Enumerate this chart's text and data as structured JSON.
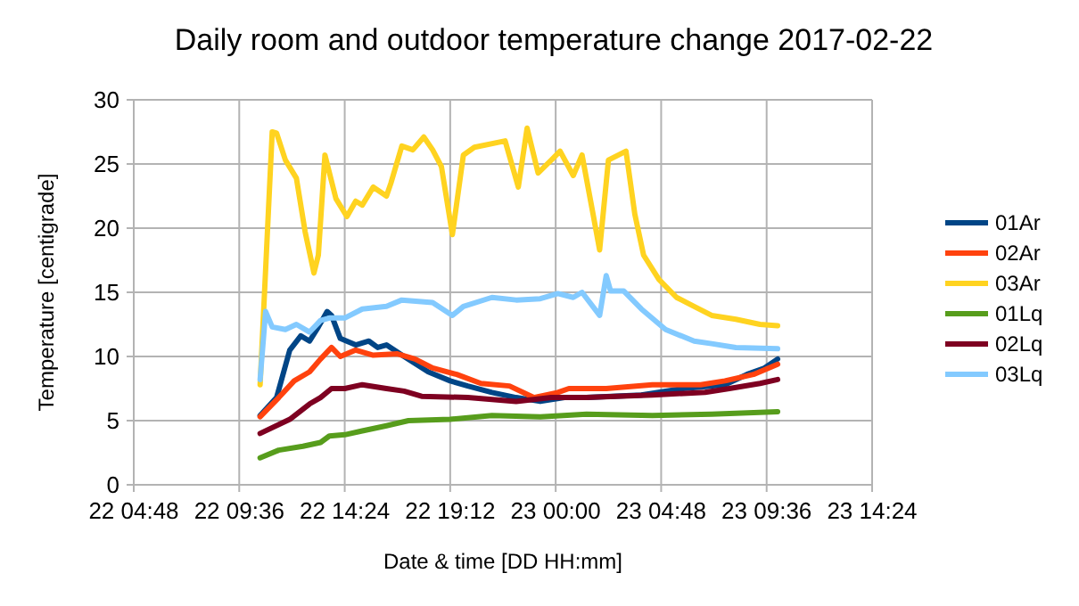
{
  "chart_data": {
    "type": "line",
    "title": "Daily room and outdoor temperature change 2017-02-22",
    "xlabel": "Date & time [DD HH:mm]",
    "ylabel": "Temperature [centigrade]",
    "xlim": [
      "2017-02-22T04:48",
      "2017-02-23T14:24"
    ],
    "xticks": [
      {
        "value": "2017-02-22T04:48",
        "label": "22 04:48"
      },
      {
        "value": "2017-02-22T09:36",
        "label": "22 09:36"
      },
      {
        "value": "2017-02-22T14:24",
        "label": "22 14:24"
      },
      {
        "value": "2017-02-22T19:12",
        "label": "22 19:12"
      },
      {
        "value": "2017-02-23T00:00",
        "label": "23 00:00"
      },
      {
        "value": "2017-02-23T04:48",
        "label": "23 04:48"
      },
      {
        "value": "2017-02-23T09:36",
        "label": "23 09:36"
      },
      {
        "value": "2017-02-23T14:24",
        "label": "23 14:24"
      }
    ],
    "ylim": [
      0,
      30
    ],
    "yticks": [
      0,
      5,
      10,
      15,
      20,
      25,
      30
    ],
    "grid": true,
    "legend": "right",
    "marker": "none",
    "line_style": "solid",
    "series": [
      {
        "name": "01Ar",
        "color": "#004586",
        "x": [
          "2017-02-22T10:33",
          "2017-02-22T11:18",
          "2017-02-22T11:54",
          "2017-02-22T12:24",
          "2017-02-22T12:48",
          "2017-02-22T13:12",
          "2017-02-22T13:36",
          "2017-02-22T13:48",
          "2017-02-22T14:12",
          "2017-02-22T14:54",
          "2017-02-22T15:30",
          "2017-02-22T15:54",
          "2017-02-22T16:18",
          "2017-02-22T17:06",
          "2017-02-22T18:12",
          "2017-02-22T19:12",
          "2017-02-22T20:00",
          "2017-02-22T21:06",
          "2017-02-22T22:12",
          "2017-02-22T23:18",
          "2017-02-23T00:24",
          "2017-02-23T01:24",
          "2017-02-23T03:54",
          "2017-02-23T05:48",
          "2017-02-23T07:42",
          "2017-02-23T08:42",
          "2017-02-23T09:30",
          "2017-02-23T10:06"
        ],
        "values": [
          5.4,
          6.8,
          10.5,
          11.6,
          11.2,
          12.3,
          13.5,
          13.2,
          11.4,
          10.9,
          11.2,
          10.7,
          10.9,
          10.0,
          8.8,
          8.1,
          7.7,
          7.2,
          6.8,
          6.5,
          6.8,
          6.8,
          7.0,
          7.5,
          7.8,
          8.6,
          9.1,
          9.8
        ]
      },
      {
        "name": "02Ar",
        "color": "#ff420e",
        "x": [
          "2017-02-22T10:33",
          "2017-02-22T11:24",
          "2017-02-22T12:06",
          "2017-02-22T12:48",
          "2017-02-22T13:18",
          "2017-02-22T13:48",
          "2017-02-22T14:12",
          "2017-02-22T14:54",
          "2017-02-22T15:42",
          "2017-02-22T16:48",
          "2017-02-22T17:36",
          "2017-02-22T18:24",
          "2017-02-22T19:30",
          "2017-02-22T20:36",
          "2017-02-22T21:54",
          "2017-02-22T23:00",
          "2017-02-23T00:06",
          "2017-02-23T00:36",
          "2017-02-23T02:18",
          "2017-02-23T04:24",
          "2017-02-23T06:36",
          "2017-02-23T07:42",
          "2017-02-23T09:00",
          "2017-02-23T10:06"
        ],
        "values": [
          5.3,
          6.8,
          8.1,
          8.8,
          9.8,
          10.7,
          10.0,
          10.5,
          10.1,
          10.2,
          9.8,
          9.1,
          8.6,
          7.9,
          7.7,
          6.8,
          7.2,
          7.5,
          7.5,
          7.8,
          7.8,
          8.1,
          8.6,
          9.4
        ]
      },
      {
        "name": "03Ar",
        "color": "#ffd320",
        "x": [
          "2017-02-22T10:33",
          "2017-02-22T11:06",
          "2017-02-22T11:18",
          "2017-02-22T11:42",
          "2017-02-22T12:12",
          "2017-02-22T12:36",
          "2017-02-22T13:00",
          "2017-02-22T13:12",
          "2017-02-22T13:30",
          "2017-02-22T14:00",
          "2017-02-22T14:30",
          "2017-02-22T14:54",
          "2017-02-22T15:12",
          "2017-02-22T15:42",
          "2017-02-22T16:18",
          "2017-02-22T16:30",
          "2017-02-22T17:00",
          "2017-02-22T17:30",
          "2017-02-22T18:00",
          "2017-02-22T18:24",
          "2017-02-22T18:48",
          "2017-02-22T19:18",
          "2017-02-22T19:48",
          "2017-02-22T20:18",
          "2017-02-22T21:42",
          "2017-02-22T22:18",
          "2017-02-22T22:42",
          "2017-02-22T23:12",
          "2017-02-22T23:48",
          "2017-02-23T00:12",
          "2017-02-23T00:48",
          "2017-02-23T01:12",
          "2017-02-23T01:42",
          "2017-02-23T02:00",
          "2017-02-23T02:24",
          "2017-02-23T03:12",
          "2017-02-23T03:36",
          "2017-02-23T04:00",
          "2017-02-23T04:42",
          "2017-02-23T05:30",
          "2017-02-23T06:18",
          "2017-02-23T07:06",
          "2017-02-23T08:12",
          "2017-02-23T09:18",
          "2017-02-23T10:06"
        ],
        "values": [
          7.8,
          27.5,
          27.4,
          25.3,
          23.9,
          19.7,
          16.5,
          17.9,
          25.7,
          22.3,
          20.9,
          22.1,
          21.8,
          23.2,
          22.5,
          23.5,
          26.4,
          26.1,
          27.1,
          26.1,
          24.8,
          19.5,
          25.7,
          26.3,
          26.8,
          23.2,
          27.8,
          24.3,
          25.3,
          26.0,
          24.1,
          25.7,
          21.1,
          18.3,
          25.3,
          26.0,
          21.1,
          17.9,
          16.0,
          14.6,
          13.9,
          13.2,
          12.9,
          12.5,
          12.4
        ]
      },
      {
        "name": "01Lq",
        "color": "#579d1c",
        "x": [
          "2017-02-22T10:33",
          "2017-02-22T11:24",
          "2017-02-22T12:30",
          "2017-02-22T13:18",
          "2017-02-22T13:42",
          "2017-02-22T14:24",
          "2017-02-22T15:12",
          "2017-02-22T16:18",
          "2017-02-22T17:18",
          "2017-02-22T19:12",
          "2017-02-22T21:06",
          "2017-02-22T23:18",
          "2017-02-23T01:24",
          "2017-02-23T04:24",
          "2017-02-23T07:06",
          "2017-02-23T10:06"
        ],
        "values": [
          2.1,
          2.7,
          3.0,
          3.3,
          3.8,
          3.9,
          4.2,
          4.6,
          5.0,
          5.1,
          5.4,
          5.3,
          5.5,
          5.4,
          5.5,
          5.7
        ]
      },
      {
        "name": "02Lq",
        "color": "#7e0021",
        "x": [
          "2017-02-22T10:33",
          "2017-02-22T11:54",
          "2017-02-22T12:48",
          "2017-02-22T13:18",
          "2017-02-22T13:48",
          "2017-02-22T14:24",
          "2017-02-22T15:12",
          "2017-02-22T16:18",
          "2017-02-22T17:06",
          "2017-02-22T17:54",
          "2017-02-22T20:00",
          "2017-02-22T22:12",
          "2017-02-22T23:48",
          "2017-02-23T01:24",
          "2017-02-23T04:24",
          "2017-02-23T06:48",
          "2017-02-23T07:54",
          "2017-02-23T09:18",
          "2017-02-23T10:06"
        ],
        "values": [
          4.0,
          5.1,
          6.3,
          6.8,
          7.5,
          7.5,
          7.8,
          7.5,
          7.3,
          6.9,
          6.8,
          6.5,
          6.8,
          6.8,
          7.0,
          7.2,
          7.5,
          7.9,
          8.2
        ]
      },
      {
        "name": "03Lq",
        "color": "#83caff",
        "x": [
          "2017-02-22T10:33",
          "2017-02-22T10:48",
          "2017-02-22T11:06",
          "2017-02-22T11:42",
          "2017-02-22T12:12",
          "2017-02-22T12:48",
          "2017-02-22T13:18",
          "2017-02-22T13:42",
          "2017-02-22T14:24",
          "2017-02-22T15:12",
          "2017-02-22T16:18",
          "2017-02-22T17:00",
          "2017-02-22T18:24",
          "2017-02-22T19:18",
          "2017-02-22T19:48",
          "2017-02-22T21:06",
          "2017-02-22T22:12",
          "2017-02-22T23:18",
          "2017-02-23T00:06",
          "2017-02-23T00:48",
          "2017-02-23T01:12",
          "2017-02-23T02:00",
          "2017-02-23T02:18",
          "2017-02-23T02:30",
          "2017-02-23T03:06",
          "2017-02-23T03:54",
          "2017-02-23T05:00",
          "2017-02-23T06:18",
          "2017-02-23T07:06",
          "2017-02-23T08:12",
          "2017-02-23T10:06"
        ],
        "values": [
          8.2,
          13.5,
          12.3,
          12.1,
          12.5,
          11.9,
          12.8,
          13.0,
          13.0,
          13.7,
          13.9,
          14.4,
          14.2,
          13.2,
          13.9,
          14.6,
          14.4,
          14.5,
          14.9,
          14.6,
          15.0,
          13.2,
          16.3,
          15.1,
          15.1,
          13.7,
          12.1,
          11.2,
          11.0,
          10.7,
          10.6
        ]
      }
    ]
  }
}
